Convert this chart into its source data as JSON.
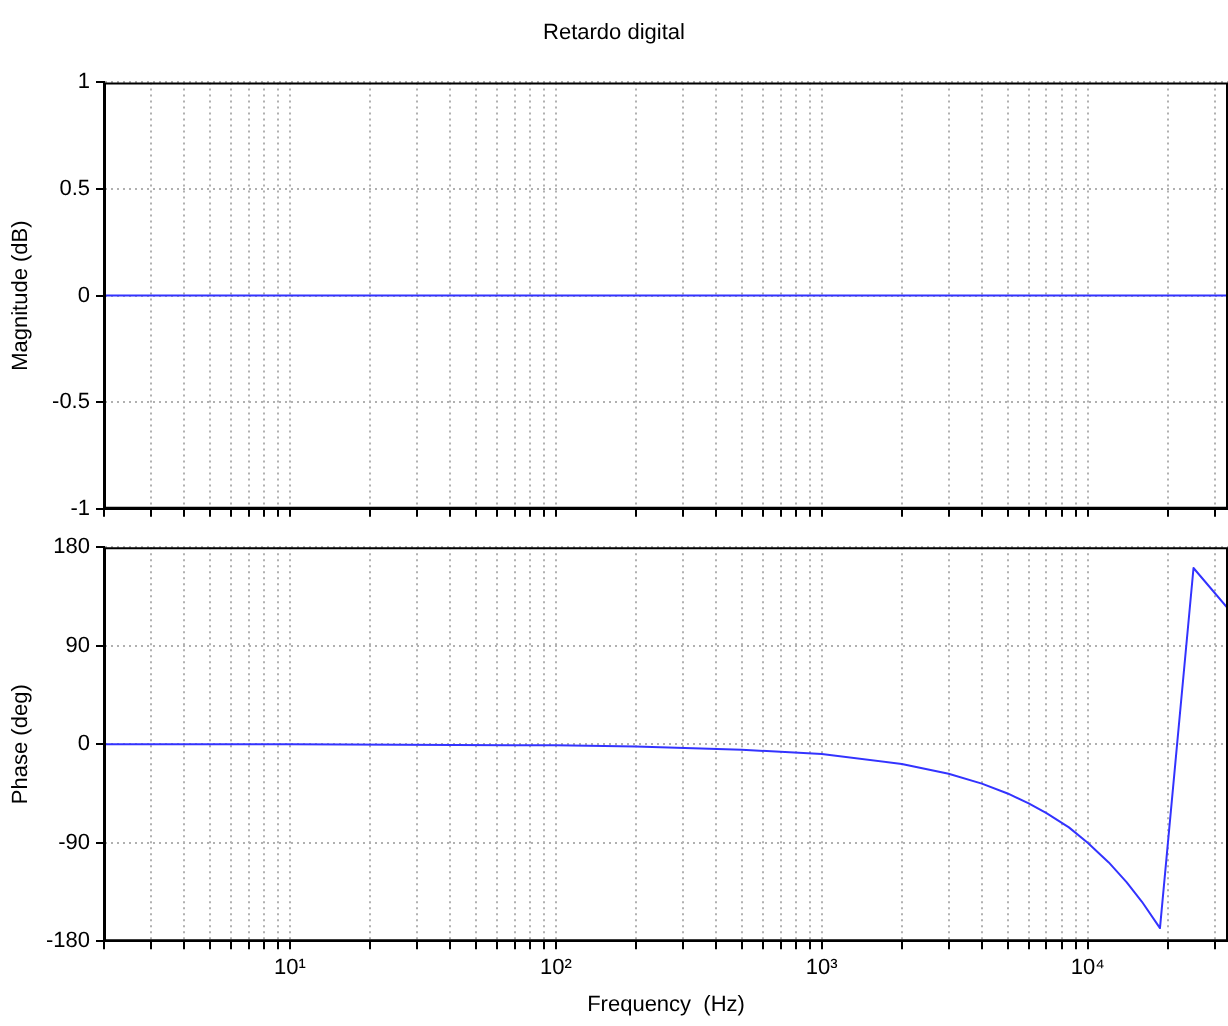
{
  "chart_data": [
    {
      "type": "line",
      "title": "Retardo digital",
      "ylabel": "Magnitude (dB)",
      "log": "x",
      "grid": true,
      "tick_labels": "y",
      "line_style": "solid",
      "x": [
        2,
        10,
        70,
        100,
        200,
        500,
        1000,
        2000,
        3000,
        5000,
        7000,
        10000,
        14000,
        18700,
        25000,
        33700
      ],
      "series": [
        {
          "color": "#3333ff",
          "values": [
            0,
            0,
            0,
            0,
            0,
            0,
            0,
            0,
            0,
            0,
            0,
            0,
            0,
            0,
            0,
            0
          ]
        }
      ],
      "xlim": [
        2,
        33700
      ],
      "ylim": [
        -1,
        1
      ],
      "yticks": [
        -1,
        -0.5,
        0,
        0.5,
        1
      ],
      "xticks": [
        {
          "value": 2,
          "label": null
        },
        {
          "value": 3,
          "label": null
        },
        {
          "value": 4,
          "label": null
        },
        {
          "value": 5,
          "label": null
        },
        {
          "value": 6,
          "label": null
        },
        {
          "value": 7,
          "label": null
        },
        {
          "value": 8,
          "label": null
        },
        {
          "value": 9,
          "label": null
        },
        {
          "value": 10,
          "label": null
        },
        {
          "value": 20,
          "label": null
        },
        {
          "value": 30,
          "label": null
        },
        {
          "value": 40,
          "label": null
        },
        {
          "value": 50,
          "label": null
        },
        {
          "value": 60,
          "label": null
        },
        {
          "value": 70,
          "label": null
        },
        {
          "value": 80,
          "label": null
        },
        {
          "value": 90,
          "label": null
        },
        {
          "value": 100,
          "label": null
        },
        {
          "value": 200,
          "label": null
        },
        {
          "value": 300,
          "label": null
        },
        {
          "value": 400,
          "label": null
        },
        {
          "value": 500,
          "label": null
        },
        {
          "value": 600,
          "label": null
        },
        {
          "value": 700,
          "label": null
        },
        {
          "value": 800,
          "label": null
        },
        {
          "value": 900,
          "label": null
        },
        {
          "value": 1000,
          "label": null
        },
        {
          "value": 2000,
          "label": null
        },
        {
          "value": 3000,
          "label": null
        },
        {
          "value": 4000,
          "label": null
        },
        {
          "value": 5000,
          "label": null
        },
        {
          "value": 6000,
          "label": null
        },
        {
          "value": 7000,
          "label": null
        },
        {
          "value": 8000,
          "label": null
        },
        {
          "value": 9000,
          "label": null
        },
        {
          "value": 10000,
          "label": null
        },
        {
          "value": 20000,
          "label": null
        },
        {
          "value": 30000,
          "label": null
        }
      ]
    },
    {
      "type": "line",
      "xlabel": "Frequency  (Hz)",
      "ylabel": "Phase (deg)",
      "log": "x",
      "grid": true,
      "line_style": "solid",
      "x": [
        2,
        10,
        70,
        100,
        200,
        500,
        1000,
        2000,
        3000,
        4000,
        5000,
        6000,
        7000,
        8500,
        10000,
        12000,
        14000,
        16000,
        18700,
        25000,
        33700
      ],
      "series": [
        {
          "color": "#3333ff",
          "values": [
            0,
            0,
            -1,
            -1,
            -2,
            -5,
            -9,
            -18,
            -27,
            -36,
            -45,
            -54,
            -63,
            -76,
            -90,
            -108,
            -126,
            -144,
            -168,
            161,
            124
          ]
        }
      ],
      "xlim": [
        2,
        33700
      ],
      "ylim": [
        -180,
        180
      ],
      "yticks": [
        -180,
        -90,
        0,
        90,
        180
      ],
      "xticks": [
        {
          "value": 2,
          "label": null
        },
        {
          "value": 3,
          "label": null
        },
        {
          "value": 4,
          "label": null
        },
        {
          "value": 5,
          "label": null
        },
        {
          "value": 6,
          "label": null
        },
        {
          "value": 7,
          "label": null
        },
        {
          "value": 8,
          "label": null
        },
        {
          "value": 9,
          "label": null
        },
        {
          "value": 10,
          "label": "10¹"
        },
        {
          "value": 20,
          "label": null
        },
        {
          "value": 30,
          "label": null
        },
        {
          "value": 40,
          "label": null
        },
        {
          "value": 50,
          "label": null
        },
        {
          "value": 60,
          "label": null
        },
        {
          "value": 70,
          "label": null
        },
        {
          "value": 80,
          "label": null
        },
        {
          "value": 90,
          "label": null
        },
        {
          "value": 100,
          "label": "10²"
        },
        {
          "value": 200,
          "label": null
        },
        {
          "value": 300,
          "label": null
        },
        {
          "value": 400,
          "label": null
        },
        {
          "value": 500,
          "label": null
        },
        {
          "value": 600,
          "label": null
        },
        {
          "value": 700,
          "label": null
        },
        {
          "value": 800,
          "label": null
        },
        {
          "value": 900,
          "label": null
        },
        {
          "value": 1000,
          "label": "10³"
        },
        {
          "value": 2000,
          "label": null
        },
        {
          "value": 3000,
          "label": null
        },
        {
          "value": 4000,
          "label": null
        },
        {
          "value": 5000,
          "label": null
        },
        {
          "value": 6000,
          "label": null
        },
        {
          "value": 7000,
          "label": null
        },
        {
          "value": 8000,
          "label": null
        },
        {
          "value": 9000,
          "label": null
        },
        {
          "value": 10000,
          "label": "10⁴"
        },
        {
          "value": 20000,
          "label": null
        },
        {
          "value": 30000,
          "label": null
        }
      ]
    }
  ]
}
